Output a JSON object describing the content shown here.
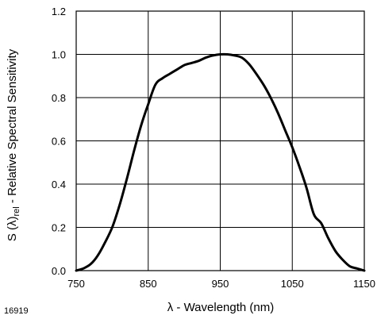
{
  "figure_id": "16919",
  "chart_data": {
    "type": "line",
    "title": "",
    "xlabel": "λ - Wavelength (nm)",
    "ylabel_parts": {
      "pre": "S (λ)",
      "sub": "rel",
      "post": " - Relative Spectral Sensitivity"
    },
    "xlim": [
      750,
      1150
    ],
    "ylim": [
      0,
      1.2
    ],
    "xticks": [
      "750",
      "850",
      "950",
      "1050",
      "1150"
    ],
    "yticks": [
      "0.0",
      "0.2",
      "0.4",
      "0.6",
      "0.8",
      "1.0",
      "1.2"
    ],
    "grid": true,
    "series": [
      {
        "x": [
          750,
          760,
          770,
          780,
          790,
          800,
          810,
          820,
          830,
          840,
          850,
          860,
          870,
          880,
          890,
          900,
          910,
          920,
          930,
          940,
          950,
          960,
          970,
          980,
          990,
          1000,
          1010,
          1020,
          1030,
          1040,
          1050,
          1060,
          1070,
          1080,
          1090,
          1100,
          1110,
          1120,
          1130,
          1140,
          1150
        ],
        "y": [
          0.0,
          0.01,
          0.03,
          0.07,
          0.13,
          0.2,
          0.3,
          0.42,
          0.55,
          0.67,
          0.77,
          0.86,
          0.89,
          0.91,
          0.93,
          0.95,
          0.96,
          0.97,
          0.985,
          0.995,
          1.0,
          1.0,
          0.995,
          0.985,
          0.955,
          0.91,
          0.86,
          0.8,
          0.73,
          0.65,
          0.57,
          0.48,
          0.38,
          0.26,
          0.22,
          0.15,
          0.09,
          0.05,
          0.02,
          0.01,
          0.0
        ],
        "color": "#000000"
      }
    ]
  }
}
